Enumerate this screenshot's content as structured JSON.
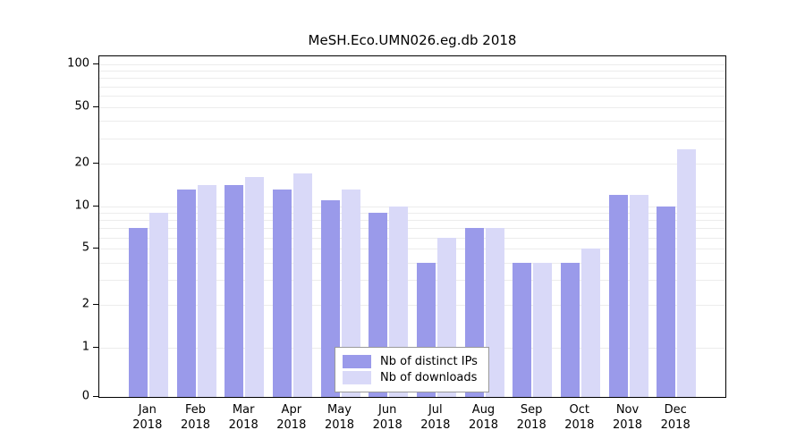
{
  "chart_data": {
    "type": "bar",
    "title": "MeSH.Eco.UMN026.eg.db 2018",
    "categories": [
      "Jan",
      "Feb",
      "Mar",
      "Apr",
      "May",
      "Jun",
      "Jul",
      "Aug",
      "Sep",
      "Oct",
      "Nov",
      "Dec"
    ],
    "year_label": "2018",
    "series": [
      {
        "name": "Nb of distinct IPs",
        "color": "#9a9aea",
        "values": [
          7,
          13,
          14,
          13,
          11,
          9,
          4,
          7,
          4,
          4,
          12,
          10
        ]
      },
      {
        "name": "Nb of downloads",
        "color": "#d9d9f8",
        "values": [
          9,
          14,
          16,
          17,
          13,
          10,
          6,
          7,
          4,
          5,
          12,
          25
        ]
      }
    ],
    "yscale": "log",
    "yticks": [
      0,
      1,
      2,
      5,
      10,
      20,
      50,
      100
    ],
    "ylim": [
      0,
      100
    ],
    "xlabel": "",
    "ylabel": "",
    "grid": true,
    "legend_position": "bottom-center"
  }
}
